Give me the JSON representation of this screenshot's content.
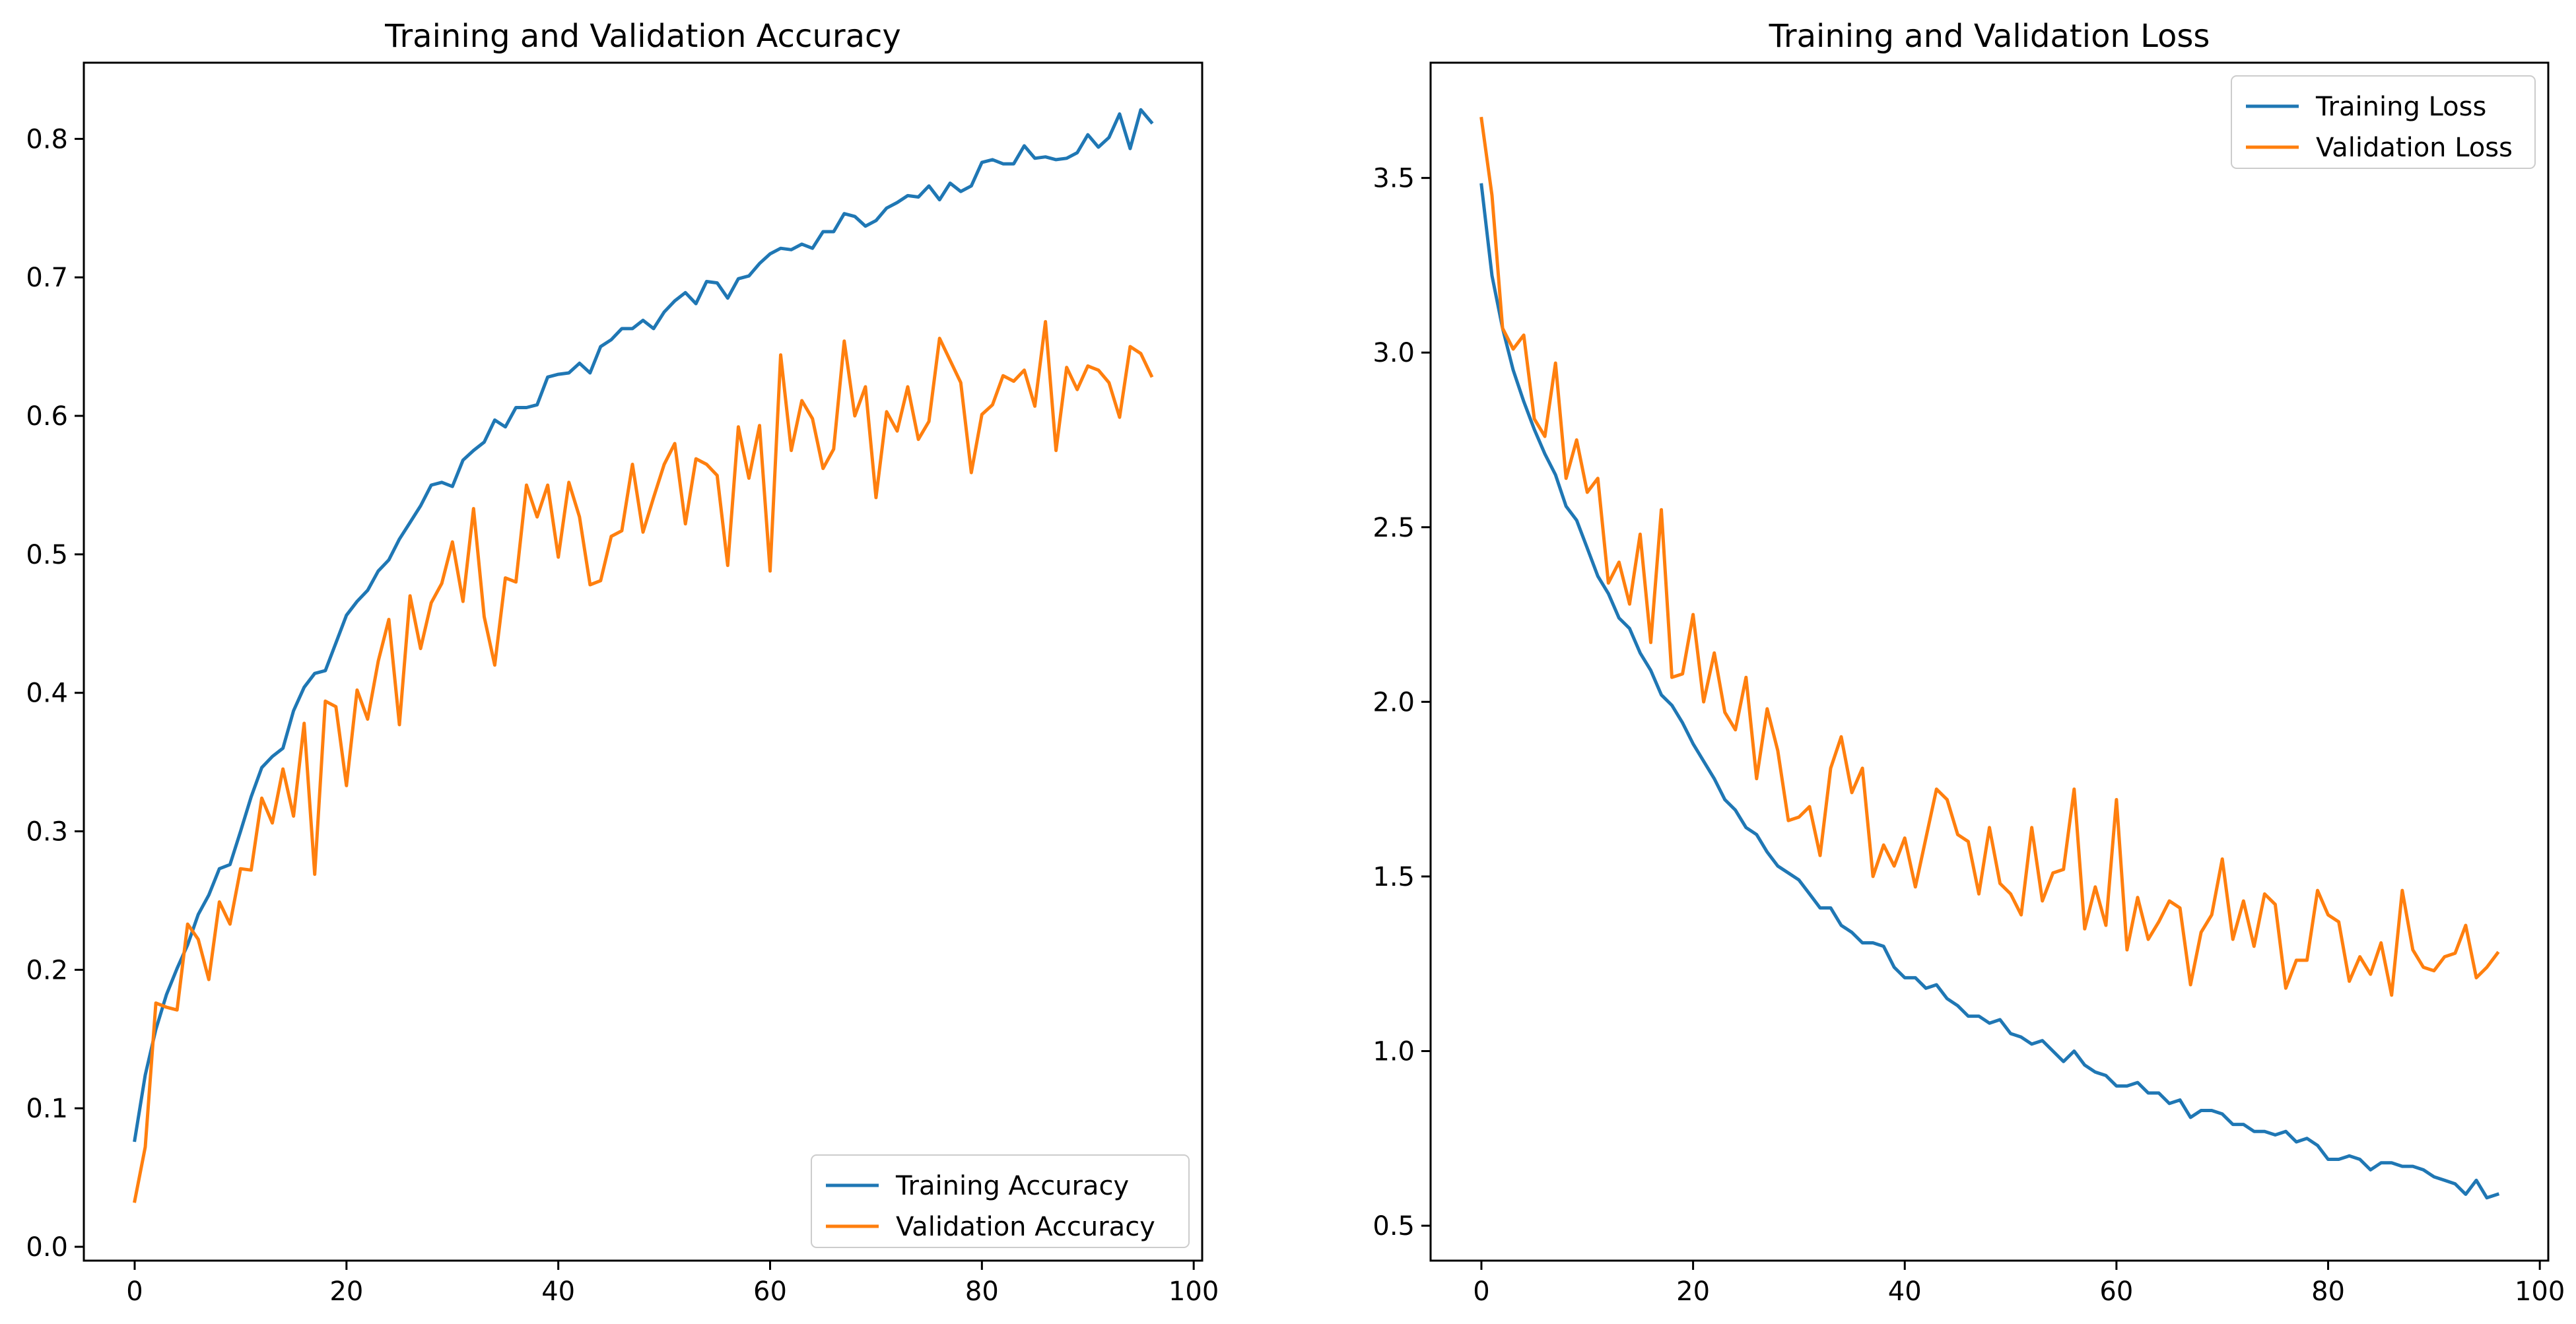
{
  "chart_data": [
    {
      "type": "line",
      "title": "Training and Validation Accuracy",
      "xlabel": "",
      "ylabel": "",
      "xlim": [
        -4.8,
        100.8
      ],
      "ylim": [
        -0.01,
        0.855
      ],
      "xticks": [
        0,
        20,
        40,
        60,
        80,
        100
      ],
      "xtick_labels": [
        "0",
        "20",
        "40",
        "60",
        "80",
        "100"
      ],
      "yticks": [
        0.0,
        0.1,
        0.2,
        0.3,
        0.4,
        0.5,
        0.6,
        0.7,
        0.8
      ],
      "ytick_labels": [
        "0.0",
        "0.1",
        "0.2",
        "0.3",
        "0.4",
        "0.5",
        "0.6",
        "0.7",
        "0.8"
      ],
      "grid": false,
      "legend_position": "lower right",
      "series": [
        {
          "name": "Training Accuracy",
          "color": "#1f77b4",
          "x": [
            0,
            1,
            2,
            3,
            4,
            5,
            6,
            7,
            8,
            9,
            10,
            11,
            12,
            13,
            14,
            15,
            16,
            17,
            18,
            19,
            20,
            21,
            22,
            23,
            24,
            25,
            26,
            27,
            28,
            29,
            30,
            31,
            32,
            33,
            34,
            35,
            36,
            37,
            38,
            39,
            40,
            41,
            42,
            43,
            44,
            45,
            46,
            47,
            48,
            49,
            50,
            51,
            52,
            53,
            54,
            55,
            56,
            57,
            58,
            59,
            60,
            61,
            62,
            63,
            64,
            65,
            66,
            67,
            68,
            69,
            70,
            71,
            72,
            73,
            74,
            75,
            76,
            77,
            78,
            79,
            80,
            81,
            82,
            83,
            84,
            85,
            86,
            87,
            88,
            89,
            90,
            91,
            92,
            93,
            94,
            95,
            96
          ],
          "values": [
            0.077,
            0.124,
            0.157,
            0.182,
            0.201,
            0.218,
            0.24,
            0.254,
            0.273,
            0.276,
            0.3,
            0.325,
            0.346,
            0.354,
            0.36,
            0.387,
            0.404,
            0.414,
            0.416,
            0.436,
            0.456,
            0.466,
            0.474,
            0.488,
            0.496,
            0.511,
            0.523,
            0.535,
            0.55,
            0.552,
            0.549,
            0.568,
            0.575,
            0.581,
            0.597,
            0.592,
            0.606,
            0.606,
            0.608,
            0.628,
            0.63,
            0.631,
            0.638,
            0.631,
            0.65,
            0.655,
            0.663,
            0.663,
            0.669,
            0.663,
            0.675,
            0.683,
            0.689,
            0.681,
            0.697,
            0.696,
            0.685,
            0.699,
            0.701,
            0.71,
            0.717,
            0.721,
            0.72,
            0.724,
            0.721,
            0.733,
            0.733,
            0.746,
            0.744,
            0.737,
            0.741,
            0.75,
            0.754,
            0.759,
            0.758,
            0.766,
            0.756,
            0.768,
            0.762,
            0.766,
            0.783,
            0.785,
            0.782,
            0.782,
            0.795,
            0.786,
            0.787,
            0.785,
            0.786,
            0.79,
            0.803,
            0.794,
            0.801,
            0.818,
            0.793,
            0.821,
            0.812
          ]
        },
        {
          "name": "Validation Accuracy",
          "color": "#ff7f0e",
          "x": [
            0,
            1,
            2,
            3,
            4,
            5,
            6,
            7,
            8,
            9,
            10,
            11,
            12,
            13,
            14,
            15,
            16,
            17,
            18,
            19,
            20,
            21,
            22,
            23,
            24,
            25,
            26,
            27,
            28,
            29,
            30,
            31,
            32,
            33,
            34,
            35,
            36,
            37,
            38,
            39,
            40,
            41,
            42,
            43,
            44,
            45,
            46,
            47,
            48,
            49,
            50,
            51,
            52,
            53,
            54,
            55,
            56,
            57,
            58,
            59,
            60,
            61,
            62,
            63,
            64,
            65,
            66,
            67,
            68,
            69,
            70,
            71,
            72,
            73,
            74,
            75,
            76,
            77,
            78,
            79,
            80,
            81,
            82,
            83,
            84,
            85,
            86,
            87,
            88,
            89,
            90,
            91,
            92,
            93,
            94,
            95,
            96
          ],
          "values": [
            0.033,
            0.072,
            0.176,
            0.173,
            0.171,
            0.233,
            0.222,
            0.193,
            0.249,
            0.233,
            0.273,
            0.272,
            0.324,
            0.306,
            0.345,
            0.311,
            0.378,
            0.269,
            0.394,
            0.39,
            0.333,
            0.402,
            0.381,
            0.423,
            0.453,
            0.377,
            0.47,
            0.432,
            0.465,
            0.479,
            0.509,
            0.466,
            0.533,
            0.455,
            0.42,
            0.483,
            0.48,
            0.55,
            0.527,
            0.55,
            0.498,
            0.552,
            0.527,
            0.478,
            0.481,
            0.513,
            0.517,
            0.565,
            0.516,
            0.541,
            0.565,
            0.58,
            0.522,
            0.569,
            0.565,
            0.557,
            0.492,
            0.592,
            0.555,
            0.593,
            0.488,
            0.644,
            0.575,
            0.611,
            0.598,
            0.562,
            0.576,
            0.654,
            0.6,
            0.621,
            0.541,
            0.603,
            0.589,
            0.621,
            0.583,
            0.596,
            0.656,
            0.64,
            0.624,
            0.559,
            0.601,
            0.608,
            0.629,
            0.625,
            0.633,
            0.607,
            0.668,
            0.575,
            0.635,
            0.619,
            0.636,
            0.633,
            0.624,
            0.599,
            0.65,
            0.645,
            0.629
          ]
        }
      ]
    },
    {
      "type": "line",
      "title": "Training and Validation Loss",
      "xlabel": "",
      "ylabel": "",
      "xlim": [
        -4.8,
        100.8
      ],
      "ylim": [
        0.4,
        3.83
      ],
      "xticks": [
        0,
        20,
        40,
        60,
        80,
        100
      ],
      "xtick_labels": [
        "0",
        "20",
        "40",
        "60",
        "80",
        "100"
      ],
      "yticks": [
        0.5,
        1.0,
        1.5,
        2.0,
        2.5,
        3.0,
        3.5
      ],
      "ytick_labels": [
        "0.5",
        "1.0",
        "1.5",
        "2.0",
        "2.5",
        "3.0",
        "3.5"
      ],
      "grid": false,
      "legend_position": "upper right",
      "series": [
        {
          "name": "Training Loss",
          "color": "#1f77b4",
          "x": [
            0,
            1,
            2,
            3,
            4,
            5,
            6,
            7,
            8,
            9,
            10,
            11,
            12,
            13,
            14,
            15,
            16,
            17,
            18,
            19,
            20,
            21,
            22,
            23,
            24,
            25,
            26,
            27,
            28,
            29,
            30,
            31,
            32,
            33,
            34,
            35,
            36,
            37,
            38,
            39,
            40,
            41,
            42,
            43,
            44,
            45,
            46,
            47,
            48,
            49,
            50,
            51,
            52,
            53,
            54,
            55,
            56,
            57,
            58,
            59,
            60,
            61,
            62,
            63,
            64,
            65,
            66,
            67,
            68,
            69,
            70,
            71,
            72,
            73,
            74,
            75,
            76,
            77,
            78,
            79,
            80,
            81,
            82,
            83,
            84,
            85,
            86,
            87,
            88,
            89,
            90,
            91,
            92,
            93,
            94,
            95,
            96
          ],
          "values": [
            3.48,
            3.22,
            3.07,
            2.95,
            2.86,
            2.78,
            2.71,
            2.65,
            2.56,
            2.52,
            2.44,
            2.36,
            2.31,
            2.24,
            2.21,
            2.14,
            2.09,
            2.02,
            1.99,
            1.94,
            1.88,
            1.83,
            1.78,
            1.72,
            1.69,
            1.64,
            1.62,
            1.57,
            1.53,
            1.51,
            1.49,
            1.45,
            1.41,
            1.41,
            1.36,
            1.34,
            1.31,
            1.31,
            1.3,
            1.24,
            1.21,
            1.21,
            1.18,
            1.19,
            1.15,
            1.13,
            1.1,
            1.1,
            1.08,
            1.09,
            1.05,
            1.04,
            1.02,
            1.03,
            1.0,
            0.97,
            1.0,
            0.96,
            0.94,
            0.93,
            0.9,
            0.9,
            0.91,
            0.88,
            0.88,
            0.85,
            0.86,
            0.81,
            0.83,
            0.83,
            0.82,
            0.79,
            0.79,
            0.77,
            0.77,
            0.76,
            0.77,
            0.74,
            0.75,
            0.73,
            0.69,
            0.69,
            0.7,
            0.69,
            0.66,
            0.68,
            0.68,
            0.67,
            0.67,
            0.66,
            0.64,
            0.63,
            0.62,
            0.59,
            0.63,
            0.58,
            0.59
          ]
        },
        {
          "name": "Validation Loss",
          "color": "#ff7f0e",
          "x": [
            0,
            1,
            2,
            3,
            4,
            5,
            6,
            7,
            8,
            9,
            10,
            11,
            12,
            13,
            14,
            15,
            16,
            17,
            18,
            19,
            20,
            21,
            22,
            23,
            24,
            25,
            26,
            27,
            28,
            29,
            30,
            31,
            32,
            33,
            34,
            35,
            36,
            37,
            38,
            39,
            40,
            41,
            42,
            43,
            44,
            45,
            46,
            47,
            48,
            49,
            50,
            51,
            52,
            53,
            54,
            55,
            56,
            57,
            58,
            59,
            60,
            61,
            62,
            63,
            64,
            65,
            66,
            67,
            68,
            69,
            70,
            71,
            72,
            73,
            74,
            75,
            76,
            77,
            78,
            79,
            80,
            81,
            82,
            83,
            84,
            85,
            86,
            87,
            88,
            89,
            90,
            91,
            92,
            93,
            94,
            95,
            96
          ],
          "values": [
            3.67,
            3.45,
            3.07,
            3.01,
            3.05,
            2.81,
            2.76,
            2.97,
            2.64,
            2.75,
            2.6,
            2.64,
            2.34,
            2.4,
            2.28,
            2.48,
            2.17,
            2.55,
            2.07,
            2.08,
            2.25,
            2.0,
            2.14,
            1.97,
            1.92,
            2.07,
            1.78,
            1.98,
            1.86,
            1.66,
            1.67,
            1.7,
            1.56,
            1.81,
            1.9,
            1.74,
            1.81,
            1.5,
            1.59,
            1.53,
            1.61,
            1.47,
            1.61,
            1.75,
            1.72,
            1.62,
            1.6,
            1.45,
            1.64,
            1.48,
            1.45,
            1.39,
            1.64,
            1.43,
            1.51,
            1.52,
            1.75,
            1.35,
            1.47,
            1.36,
            1.72,
            1.29,
            1.44,
            1.32,
            1.37,
            1.43,
            1.41,
            1.19,
            1.34,
            1.39,
            1.55,
            1.32,
            1.43,
            1.3,
            1.45,
            1.42,
            1.18,
            1.26,
            1.26,
            1.46,
            1.39,
            1.37,
            1.2,
            1.27,
            1.22,
            1.31,
            1.16,
            1.46,
            1.29,
            1.24,
            1.23,
            1.27,
            1.28,
            1.36,
            1.21,
            1.24,
            1.28
          ]
        }
      ]
    }
  ]
}
